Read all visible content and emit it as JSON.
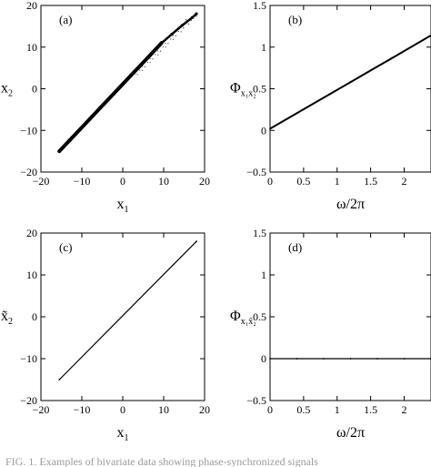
{
  "chart_data": [
    {
      "panel_label": "(a)",
      "type": "scatter",
      "xlabel": "x",
      "xlabel_sub": "1",
      "ylabel": "x",
      "ylabel_sub": "2",
      "xlim": [
        -20,
        20
      ],
      "ylim": [
        -20,
        20
      ],
      "xticks": [
        "−20",
        "−10",
        "0",
        "10",
        "20"
      ],
      "xtick_values": [
        -20,
        -10,
        0,
        10,
        20
      ],
      "yticks": [
        "−20",
        "−10",
        "0",
        "10",
        "20"
      ],
      "ytick_values": [
        -20,
        -10,
        0,
        10,
        20
      ],
      "x": [
        -15.5,
        -13,
        -10.5,
        -8,
        -5.5,
        -3,
        -0.5,
        2,
        4.5,
        7,
        9.5,
        12,
        14.5,
        17,
        18
      ],
      "y": [
        -15,
        -12.4,
        -9.8,
        -7.2,
        -4.6,
        -2,
        0.6,
        3.2,
        5.8,
        8.4,
        11,
        13.1,
        15.2,
        17.1,
        18
      ]
    },
    {
      "panel_label": "(b)",
      "type": "line",
      "xlabel": "ω/2π",
      "ylabel": "Φ",
      "ylabel_sub": "x₁x₂",
      "xlim": [
        0,
        2.4
      ],
      "ylim": [
        -0.5,
        1.5
      ],
      "xticks": [
        "0",
        "0.5",
        "1",
        "1.5",
        "2"
      ],
      "xtick_values": [
        0,
        0.5,
        1,
        1.5,
        2
      ],
      "yticks": [
        "−0.5",
        "0",
        "0.5",
        "1",
        "1.5"
      ],
      "ytick_values": [
        -0.5,
        0,
        0.5,
        1,
        1.5
      ],
      "x": [
        0,
        0.3,
        0.6,
        0.9,
        1.2,
        1.5,
        1.8,
        2.1,
        2.4
      ],
      "y": [
        0.02,
        0.16,
        0.3,
        0.44,
        0.58,
        0.72,
        0.86,
        1.0,
        1.14
      ]
    },
    {
      "panel_label": "(c)",
      "type": "line",
      "xlabel": "x",
      "xlabel_sub": "1",
      "ylabel": "x̃",
      "ylabel_sub": "2",
      "xlim": [
        -20,
        20
      ],
      "ylim": [
        -20,
        20
      ],
      "xticks": [
        "−20",
        "−10",
        "0",
        "10",
        "20"
      ],
      "xtick_values": [
        -20,
        -10,
        0,
        10,
        20
      ],
      "yticks": [
        "−20",
        "−10",
        "0",
        "10",
        "20"
      ],
      "ytick_values": [
        -20,
        -10,
        0,
        10,
        20
      ],
      "x": [
        -15.5,
        18
      ],
      "y": [
        -15,
        18
      ]
    },
    {
      "panel_label": "(d)",
      "type": "line",
      "xlabel": "ω/2π",
      "ylabel": "Φ",
      "ylabel_sub": "x₁x̃₂",
      "xlim": [
        0,
        2.4
      ],
      "ylim": [
        -0.5,
        1.5
      ],
      "xticks": [
        "0",
        "0.5",
        "1",
        "1.5",
        "2"
      ],
      "xtick_values": [
        0,
        0.5,
        1,
        1.5,
        2
      ],
      "yticks": [
        "−0.5",
        "0",
        "0.5",
        "1",
        "1.5"
      ],
      "ytick_values": [
        -0.5,
        0,
        0.5,
        1,
        1.5
      ],
      "x": [
        0,
        0.4,
        0.8,
        1.2,
        1.6,
        2.0,
        2.4
      ],
      "y": [
        0,
        0,
        0,
        0,
        0,
        0,
        0
      ]
    }
  ],
  "caption": "FIG. 1. Examples of bivariate data showing phase-synchronized signals"
}
